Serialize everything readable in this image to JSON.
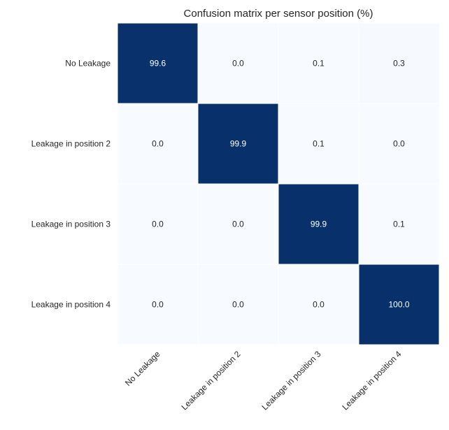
{
  "chart_data": {
    "type": "heatmap",
    "title": "Confusion matrix per sensor position (%)",
    "xlabel": "",
    "ylabel": "",
    "row_labels": [
      "No Leakage",
      "Leakage in position 2",
      "Leakage in position 3",
      "Leakage in position 4"
    ],
    "col_labels": [
      "No Leakage",
      "Leakage in position 2",
      "Leakage in position 3",
      "Leakage in position 4"
    ],
    "values": [
      [
        99.6,
        0.0,
        0.1,
        0.3
      ],
      [
        0.0,
        99.9,
        0.1,
        0.0
      ],
      [
        0.0,
        0.0,
        99.9,
        0.1
      ],
      [
        0.0,
        0.0,
        0.0,
        100.0
      ]
    ],
    "value_format": "1 decimal",
    "colormap": {
      "low": "#f7fbff",
      "high": "#08306b"
    },
    "cell_separator_color": "#ffffff",
    "high_text_color": "#ffffff",
    "low_text_color": "#262626",
    "vmin": 0,
    "vmax": 100,
    "colorbar": false
  }
}
